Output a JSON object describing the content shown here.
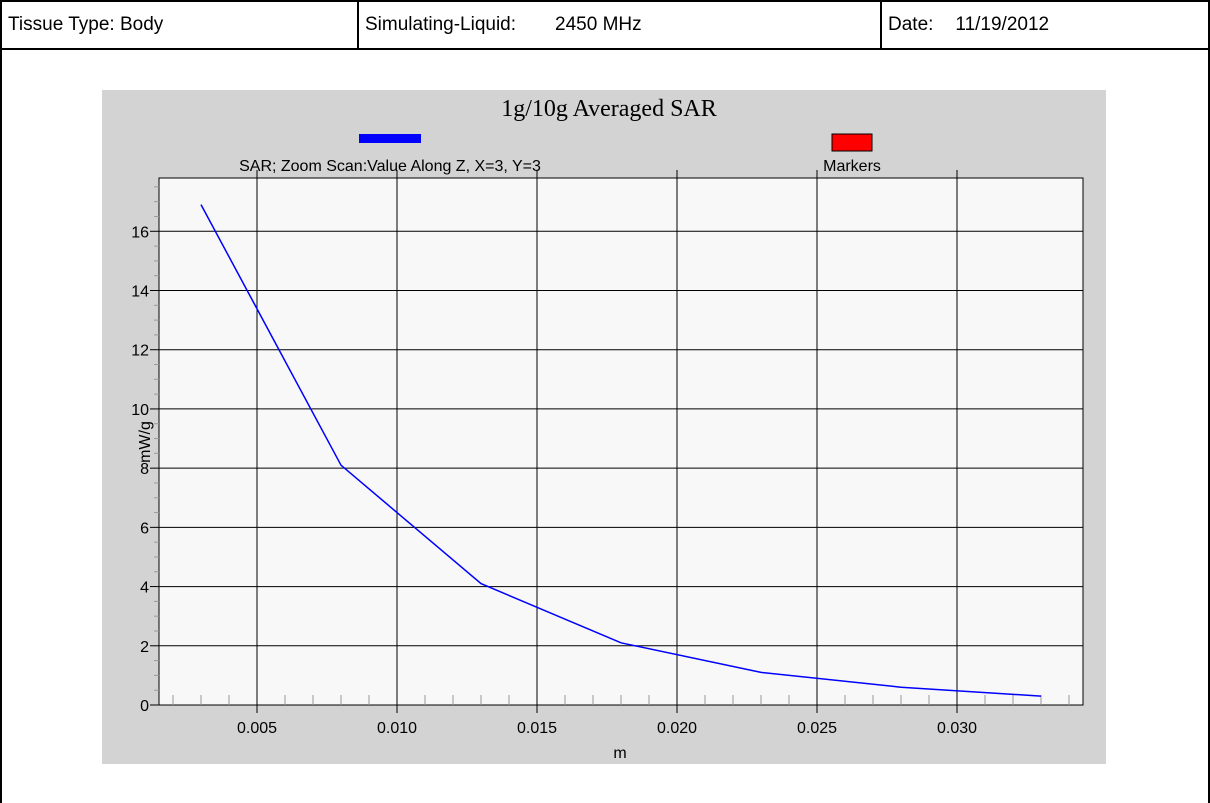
{
  "header": {
    "tissue_label": "Tissue Type:",
    "tissue_value": "Body",
    "liquid_label": "Simulating-Liquid:",
    "liquid_value": "2450 MHz",
    "date_label": "Date:",
    "date_value": "11/19/2012"
  },
  "chart_data": {
    "type": "line",
    "title": "1g/10g Averaged SAR",
    "xlabel": "m",
    "ylabel": "mW/g",
    "xlim": [
      0.0015,
      0.0345
    ],
    "ylim": [
      0,
      17.8
    ],
    "x_ticks": [
      0.005,
      0.01,
      0.015,
      0.02,
      0.025,
      0.03
    ],
    "x_tick_labels": [
      "0.005",
      "0.010",
      "0.015",
      "0.020",
      "0.025",
      "0.030"
    ],
    "y_ticks": [
      0,
      2,
      4,
      6,
      8,
      10,
      12,
      14,
      16
    ],
    "y_tick_labels": [
      "0",
      "2",
      "4",
      "6",
      "8",
      "10",
      "12",
      "14",
      "16"
    ],
    "grid": true,
    "legend": [
      {
        "name": "SAR; Zoom Scan:Value Along Z, X=3, Y=3",
        "color": "#0000ff"
      },
      {
        "name": "Markers",
        "color": "#ff0000"
      }
    ],
    "series": [
      {
        "name": "SAR; Zoom Scan:Value Along Z, X=3, Y=3",
        "color": "#0000ff",
        "x": [
          0.003,
          0.008,
          0.013,
          0.018,
          0.023,
          0.028,
          0.033
        ],
        "y": [
          16.9,
          8.1,
          4.1,
          2.1,
          1.1,
          0.6,
          0.3
        ]
      }
    ],
    "colors": {
      "plot_bg": "#d3d3d3",
      "plot_area": "#f8f8f8"
    }
  }
}
